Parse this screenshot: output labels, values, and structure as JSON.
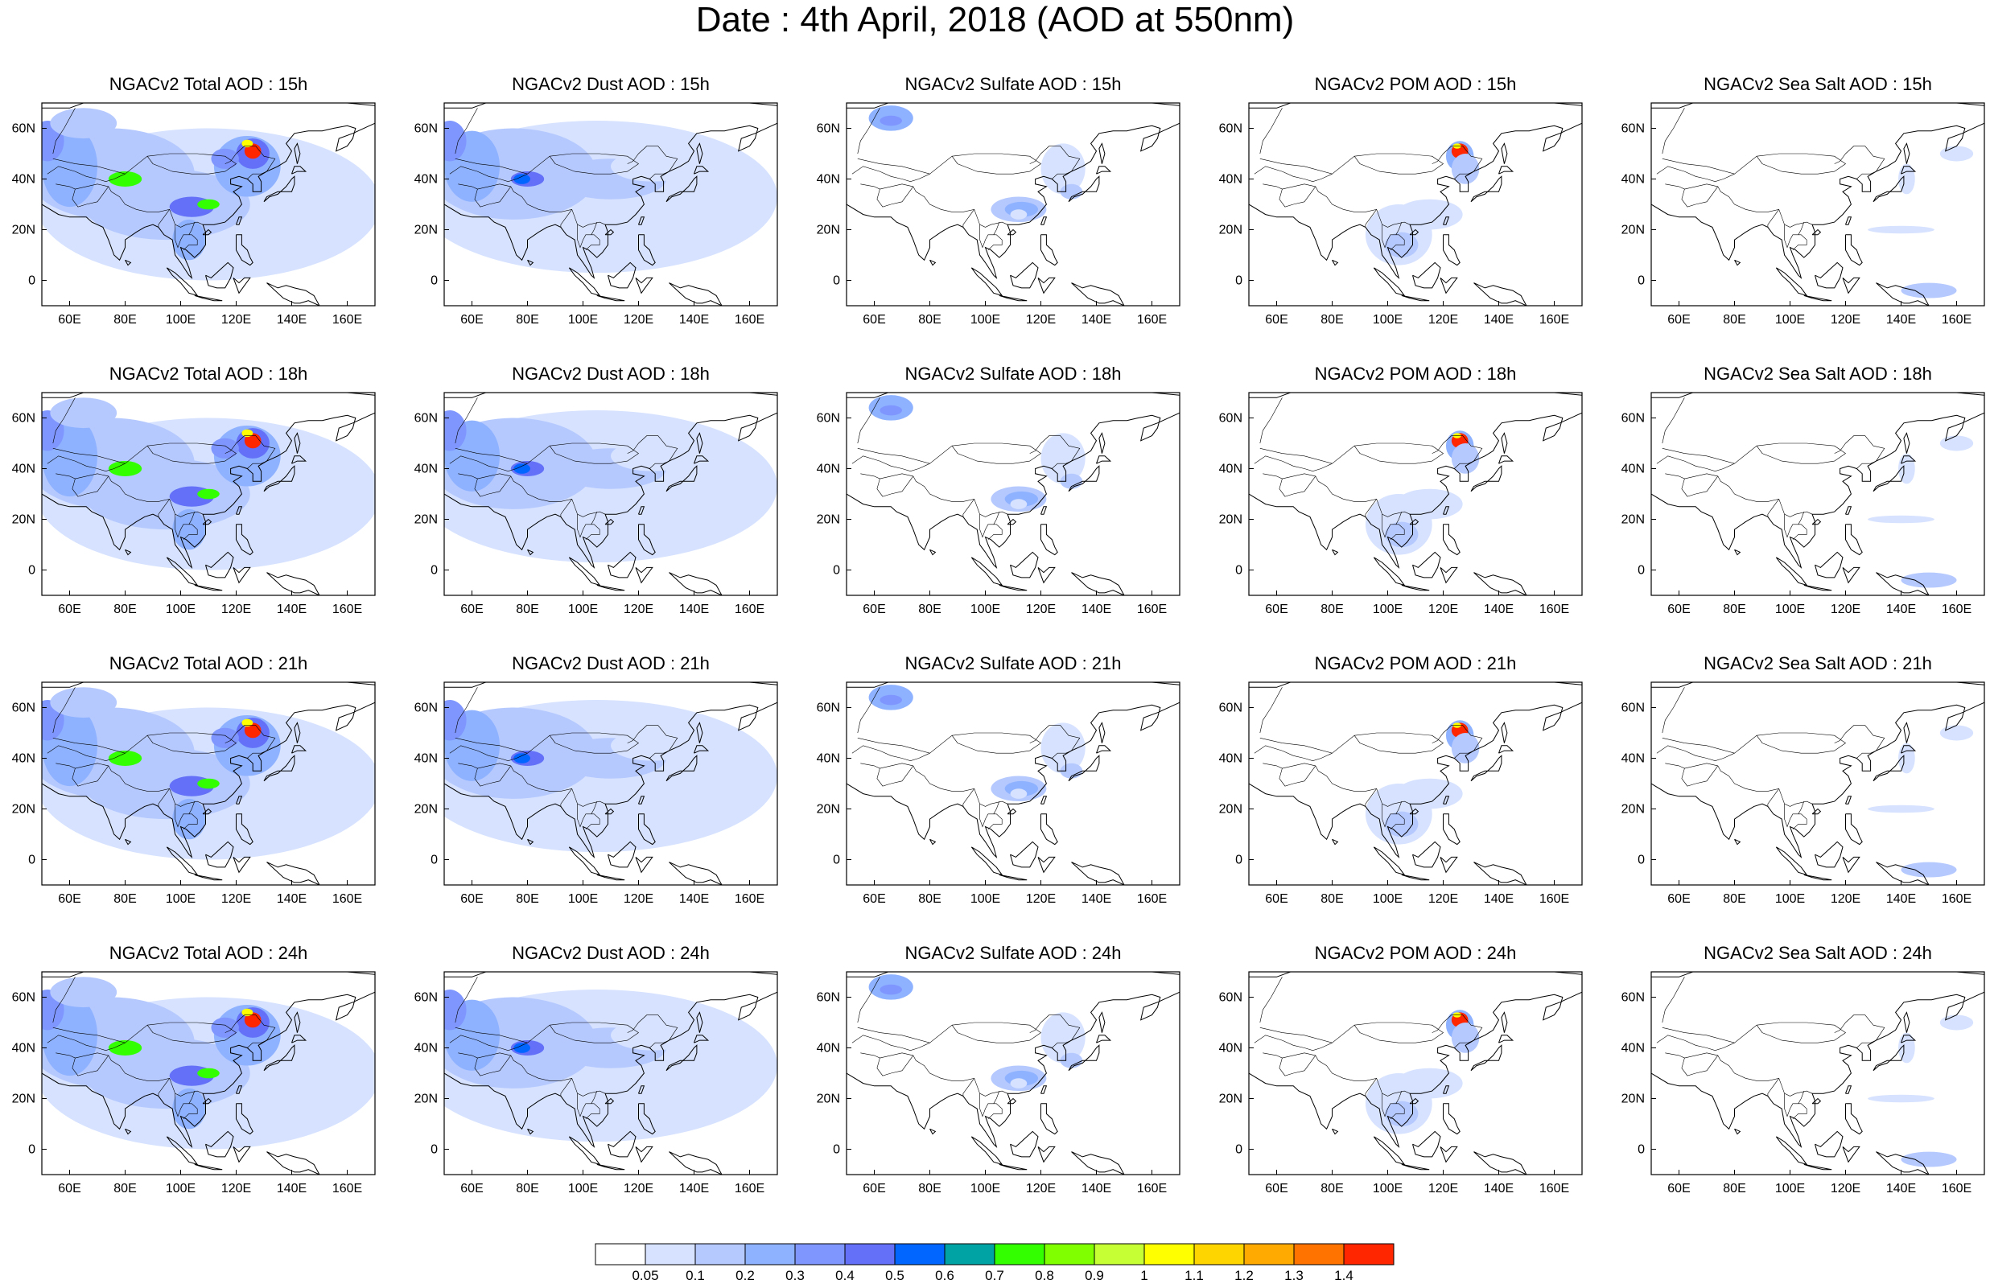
{
  "title": "Date : 4th April, 2018 (AOD at 550nm)",
  "colors": {
    "levels": [
      "#ffffff",
      "#d6e2ff",
      "#b5c9ff",
      "#8eb2ff",
      "#7f96ff",
      "#6370f7",
      "#0066ff",
      "#00a3a3",
      "#33ff00",
      "#7fff00",
      "#c6ff33",
      "#ffff00",
      "#ffd500",
      "#ffaa00",
      "#ff7300",
      "#ff2600"
    ],
    "coast": "#000000"
  },
  "colorbar": {
    "labels": [
      "0.05",
      "0.1",
      "0.2",
      "0.3",
      "0.4",
      "0.5",
      "0.6",
      "0.7",
      "0.8",
      "0.9",
      "1",
      "1.1",
      "1.2",
      "1.3",
      "1.4"
    ]
  },
  "axes": {
    "x_ticks": [
      "60E",
      "80E",
      "100E",
      "120E",
      "140E",
      "160E"
    ],
    "y_ticks": [
      "60N",
      "40N",
      "20N",
      "0"
    ],
    "lon_range": [
      50,
      170
    ],
    "lat_range": [
      -10,
      70
    ]
  },
  "panels": [
    {
      "title": "NGACv2 Total AOD : 15h",
      "species": "total"
    },
    {
      "title": "NGACv2 Dust AOD : 15h",
      "species": "dust"
    },
    {
      "title": "NGACv2 Sulfate AOD : 15h",
      "species": "sulfate"
    },
    {
      "title": "NGACv2 POM AOD : 15h",
      "species": "pom"
    },
    {
      "title": "NGACv2 Sea Salt AOD : 15h",
      "species": "seasalt"
    },
    {
      "title": "NGACv2 Total AOD : 18h",
      "species": "total"
    },
    {
      "title": "NGACv2 Dust AOD : 18h",
      "species": "dust"
    },
    {
      "title": "NGACv2 Sulfate AOD : 18h",
      "species": "sulfate"
    },
    {
      "title": "NGACv2 POM AOD : 18h",
      "species": "pom"
    },
    {
      "title": "NGACv2 Sea Salt AOD : 18h",
      "species": "seasalt"
    },
    {
      "title": "NGACv2 Total AOD : 21h",
      "species": "total"
    },
    {
      "title": "NGACv2 Dust AOD : 21h",
      "species": "dust"
    },
    {
      "title": "NGACv2 Sulfate AOD : 21h",
      "species": "sulfate"
    },
    {
      "title": "NGACv2 POM AOD : 21h",
      "species": "pom"
    },
    {
      "title": "NGACv2 Sea Salt AOD : 21h",
      "species": "seasalt"
    },
    {
      "title": "NGACv2 Total AOD : 24h",
      "species": "total"
    },
    {
      "title": "NGACv2 Dust AOD : 24h",
      "species": "dust"
    },
    {
      "title": "NGACv2 Sulfate AOD : 24h",
      "species": "sulfate"
    },
    {
      "title": "NGACv2 POM AOD : 24h",
      "species": "pom"
    },
    {
      "title": "NGACv2 Sea Salt  AOD : 24h",
      "species": "seasalt"
    }
  ]
}
